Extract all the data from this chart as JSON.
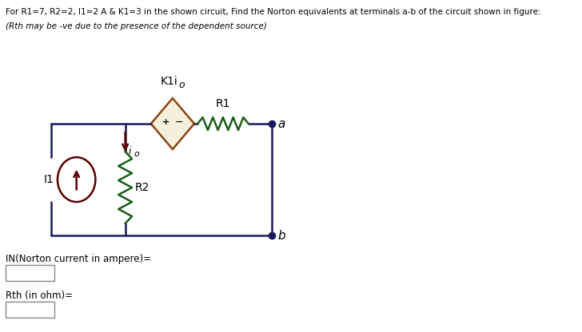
{
  "title_line1": "For R1=7, R2=2, I1=2 A & K1=3 in the shown circuit, Find the Norton equivalents at terminals a-b of the circuit shown in figure:",
  "title_line2": "(Rth may be -ve due to the presence of the dependent source)",
  "label_K1io": "K1i",
  "label_io_sup": "o",
  "label_R1": "R1",
  "label_R2": "R2",
  "label_I1": "I1",
  "label_io": "i",
  "label_io2": "o",
  "label_a": "a",
  "label_b": "b",
  "label_IN": "IN(Norton current in ampere)=",
  "label_Rth": "Rth (in ohm)=",
  "bg_color": "#ffffff",
  "wire_color": "#1a1a5e",
  "resistor_color": "#1a5e1a",
  "diamond_stroke": "#8B4513",
  "diamond_fill": "#f5f0dc",
  "cs_color": "#5c0000",
  "text_color": "#000000",
  "label_color": "#1a1a5e",
  "io_arrow_color": "#5c0000"
}
